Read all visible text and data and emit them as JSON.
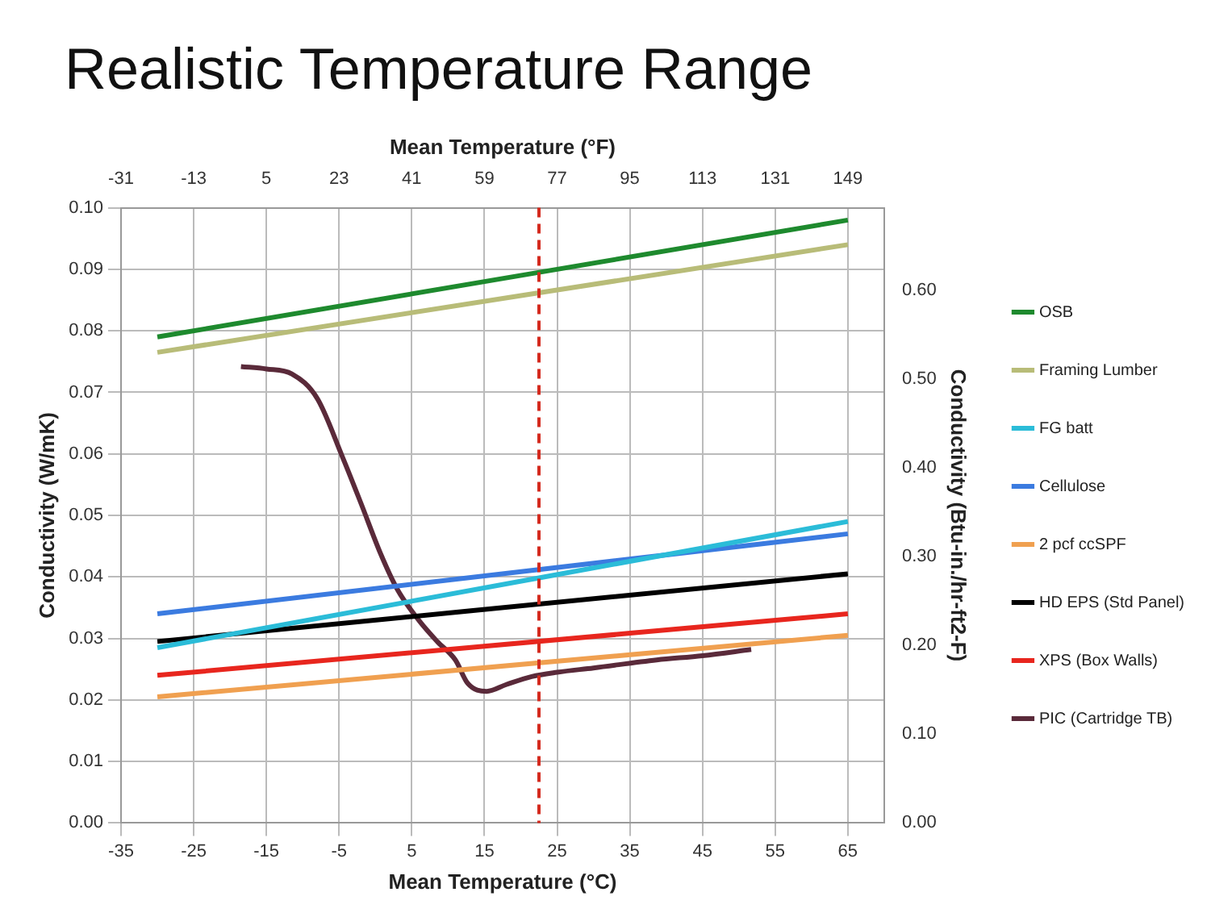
{
  "chart_data": {
    "type": "line",
    "title": "Realistic Temperature Range",
    "xlabel": "Mean Temperature (°C)",
    "x2label": "Mean Temperature (°F)",
    "ylabel": "Conductivity (W/mK)",
    "y2label": "Conductivity (Btu-in./hr-ft2-F)",
    "xlim": [
      -35,
      70
    ],
    "xticks": [
      -35,
      -25,
      -15,
      -5,
      5,
      15,
      25,
      35,
      45,
      55,
      65
    ],
    "x2lim": [
      -31,
      158
    ],
    "x2ticks": [
      -31,
      -13,
      5,
      23,
      41,
      59,
      77,
      95,
      113,
      131,
      149
    ],
    "ylim": [
      0,
      0.1
    ],
    "yticks": [
      {
        "value": 0,
        "label": "0.00"
      },
      {
        "value": 0.01,
        "label": "0.01"
      },
      {
        "value": 0.02,
        "label": "0.02"
      },
      {
        "value": 0.03,
        "label": "0.03"
      },
      {
        "value": 0.04,
        "label": "0.04"
      },
      {
        "value": 0.05,
        "label": "0.05"
      },
      {
        "value": 0.06,
        "label": "0.06"
      },
      {
        "value": 0.07,
        "label": "0.07"
      },
      {
        "value": 0.08,
        "label": "0.08"
      },
      {
        "value": 0.09,
        "label": "0.09"
      },
      {
        "value": 0.1,
        "label": "0.10"
      }
    ],
    "y2lim": [
      0,
      0.6933
    ],
    "y2ticks": [
      {
        "value": 0,
        "label": "0.00"
      },
      {
        "value": 0.1,
        "label": "0.10"
      },
      {
        "value": 0.2,
        "label": "0.20"
      },
      {
        "value": 0.3,
        "label": "0.30"
      },
      {
        "value": 0.4,
        "label": "0.40"
      },
      {
        "value": 0.5,
        "label": "0.50"
      },
      {
        "value": 0.6,
        "label": "0.60"
      }
    ],
    "grid": true,
    "legend": "right",
    "marker": "none",
    "ref_lines": [
      {
        "axis": "x",
        "value": 22.5,
        "color": "#d42a1e",
        "line_style": "dashed"
      }
    ],
    "series": [
      {
        "name": "OSB",
        "color": "#1e8a2e",
        "x": [
          -30,
          65
        ],
        "values": [
          0.079,
          0.098
        ]
      },
      {
        "name": "Framing Lumber",
        "color": "#b8bc78",
        "x": [
          -30,
          65
        ],
        "values": [
          0.0765,
          0.094
        ]
      },
      {
        "name": "FG batt",
        "color": "#2bbcd8",
        "x": [
          -30,
          65
        ],
        "values": [
          0.0285,
          0.049
        ]
      },
      {
        "name": "Cellulose",
        "color": "#3b7be0",
        "x": [
          -30,
          65
        ],
        "values": [
          0.034,
          0.047
        ]
      },
      {
        "name": "2 pcf ccSPF",
        "color": "#f0a050",
        "x": [
          -30,
          65
        ],
        "values": [
          0.0205,
          0.0305
        ]
      },
      {
        "name": "HD EPS (Std Panel)",
        "color": "#000000",
        "x": [
          -30,
          65
        ],
        "values": [
          0.0295,
          0.0405
        ]
      },
      {
        "name": "XPS (Box Walls)",
        "color": "#e8261e",
        "x": [
          -30,
          65
        ],
        "values": [
          0.024,
          0.034
        ]
      },
      {
        "name": "PIC (Cartridge TB)",
        "color": "#5a2a3a",
        "x": [
          -18.5,
          -15,
          -11.5,
          -8,
          -4.5,
          -2,
          0.7,
          3,
          6,
          8.5,
          11,
          12.7,
          15.3,
          18,
          21.5,
          25,
          30,
          38.7,
          45,
          51.7
        ],
        "values": [
          0.0742,
          0.0738,
          0.073,
          0.069,
          0.0594,
          0.052,
          0.0438,
          0.038,
          0.0329,
          0.0295,
          0.0265,
          0.0227,
          0.0214,
          0.0225,
          0.0238,
          0.0245,
          0.0252,
          0.0265,
          0.0272,
          0.0282
        ]
      }
    ]
  }
}
